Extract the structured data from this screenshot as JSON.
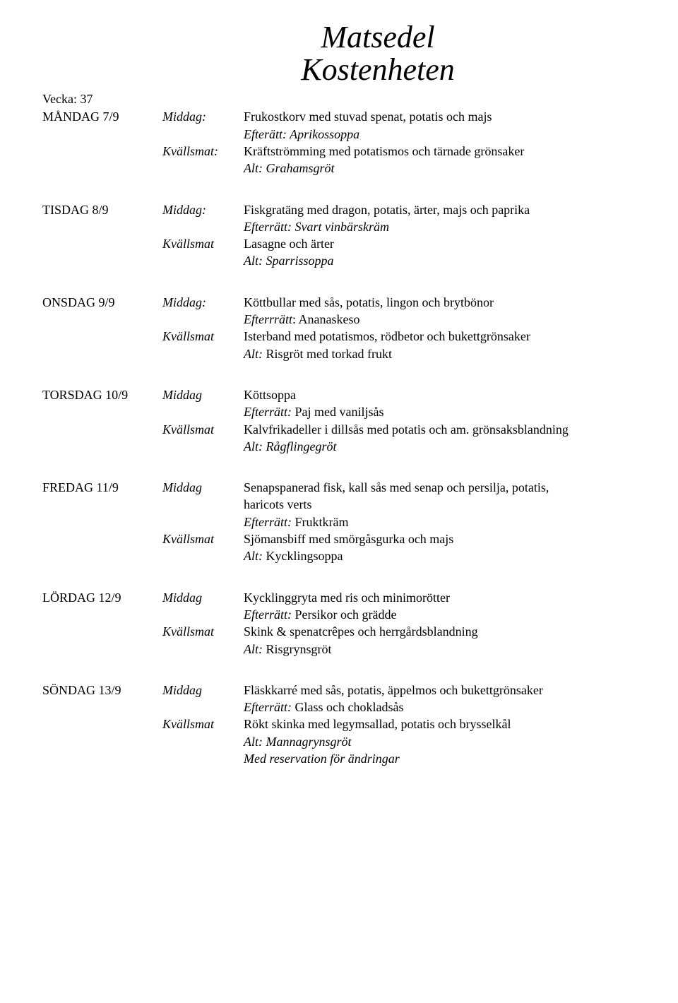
{
  "title_line1": "Matsedel",
  "title_line2": "Kostenheten",
  "week_label": "Vecka: 37",
  "days": {
    "mon": {
      "day": "MÅNDAG 7/9",
      "meal1_label": "Middag:",
      "meal1_main": "Frukostkorv med stuvad spenat, potatis och majs",
      "meal1_after": "Efterätt: Aprikossoppa",
      "meal2_label": "Kvällsmat:",
      "meal2_main": "Kräftströmming med potatismos och tärnade grönsaker",
      "meal2_alt": "Alt: Grahamsgröt"
    },
    "tue": {
      "day": "TISDAG 8/9",
      "meal1_label": "Middag:",
      "meal1_main": "Fiskgratäng med dragon, potatis, ärter, majs och paprika",
      "meal1_after": "Efterrätt: Svart vinbärskräm",
      "meal2_label": "Kvällsmat",
      "meal2_main": "Lasagne och ärter",
      "meal2_alt": "Alt: Sparrissoppa"
    },
    "wed": {
      "day": "ONSDAG 9/9",
      "meal1_label": "Middag:",
      "meal1_main": "Köttbullar med sås, potatis, lingon och brytbönor",
      "meal1_after_prefix": "Efterrrätt",
      "meal1_after_rest": ": Ananaskeso",
      "meal2_label": "Kvällsmat",
      "meal2_main": "Isterband med potatismos, rödbetor och bukettgrönsaker",
      "meal2_alt_prefix": "Alt:",
      "meal2_alt_rest": " Risgröt med torkad frukt"
    },
    "thu": {
      "day": "TORSDAG 10/9",
      "meal1_label": "Middag",
      "meal1_main": "Köttsoppa",
      "meal1_after_prefix": "Efterrätt:",
      "meal1_after_rest": " Paj med vaniljsås",
      "meal2_label": "Kvällsmat",
      "meal2_main": "Kalvfrikadeller i dillsås med potatis och am. grönsaksblandning",
      "meal2_alt": "Alt: Rågflingegröt"
    },
    "fri": {
      "day": "FREDAG 11/9",
      "meal1_label": "Middag",
      "meal1_main1": "Senapspanerad fisk, kall sås med senap och persilja, potatis,",
      "meal1_main2": "haricots verts",
      "meal1_after_prefix": "Efterrätt:",
      "meal1_after_rest": " Fruktkräm",
      "meal2_label": "Kvällsmat",
      "meal2_main": "Sjömansbiff med smörgåsgurka och majs",
      "meal2_alt_prefix": "Alt:",
      "meal2_alt_rest": " Kycklingsoppa"
    },
    "sat": {
      "day": "LÖRDAG 12/9",
      "meal1_label": "Middag",
      "meal1_main": "Kycklinggryta med ris och minimorötter",
      "meal1_after_prefix": "Efterrätt:",
      "meal1_after_rest": " Persikor och grädde",
      "meal2_label": "Kvällsmat",
      "meal2_main": "Skink & spenatcrêpes och herrgårdsblandning",
      "meal2_alt_prefix": "Alt:",
      "meal2_alt_rest": " Risgrynsgröt"
    },
    "sun": {
      "day": "SÖNDAG 13/9",
      "meal1_label": "Middag",
      "meal1_main": "Fläskkarré med sås, potatis, äppelmos och bukettgrönsaker",
      "meal1_after_prefix": "Efterrätt:",
      "meal1_after_rest": " Glass och chokladsås",
      "meal2_label": "Kvällsmat",
      "meal2_main": "Rökt skinka med legymsallad, potatis och brysselkål",
      "meal2_alt": "Alt: Mannagrynsgröt",
      "footer": "Med reservation för ändringar"
    }
  }
}
